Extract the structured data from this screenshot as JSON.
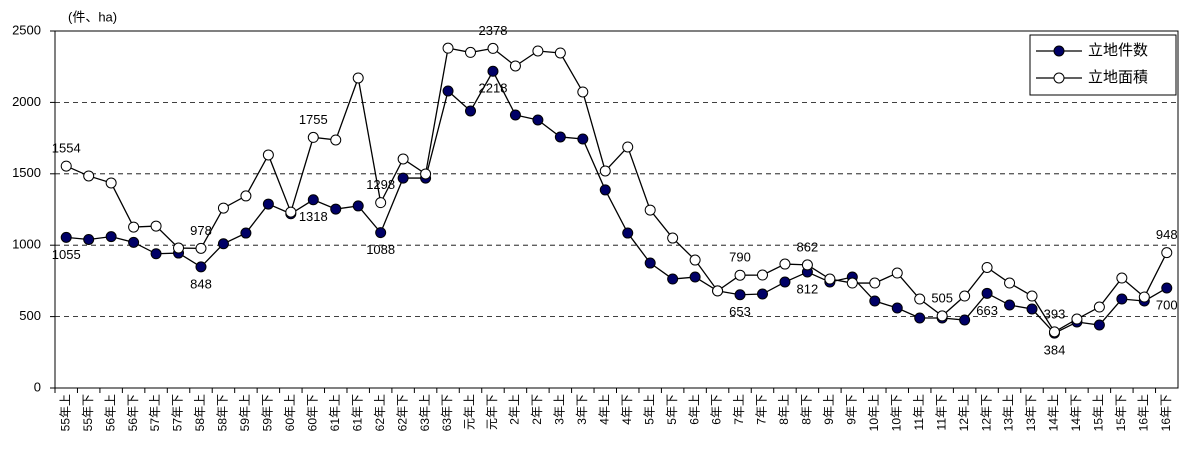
{
  "chart_data": {
    "type": "line",
    "y_label": "(件、ha)",
    "categories": [
      "55年上",
      "55年下",
      "56年上",
      "56年下",
      "57年上",
      "57年下",
      "58年上",
      "58年下",
      "59年上",
      "59年下",
      "60年上",
      "60年下",
      "61年上",
      "61年下",
      "62年上",
      "62年下",
      "63年上",
      "63年下",
      "元年上",
      "元年下",
      "2年上",
      "2年下",
      "3年上",
      "3年下",
      "4年上",
      "4年下",
      "5年上",
      "5年下",
      "6年上",
      "6年下",
      "7年上",
      "7年下",
      "8年上",
      "8年下",
      "9年上",
      "9年下",
      "10年上",
      "10年下",
      "11年上",
      "11年下",
      "12年上",
      "12年下",
      "13年上",
      "13年下",
      "14年上",
      "14年下",
      "15年上",
      "15年下",
      "16年上",
      "16年下"
    ],
    "series": [
      {
        "name": "立地件数",
        "color": "#000066",
        "marker": "filled",
        "values": [
          1055,
          1040,
          1060,
          1020,
          940,
          945,
          848,
          1010,
          1085,
          1288,
          1220,
          1318,
          1253,
          1275,
          1088,
          1470,
          1470,
          2080,
          1940,
          2218,
          1912,
          1877,
          1758,
          1744,
          1387,
          1085,
          875,
          763,
          777,
          680,
          653,
          658,
          742,
          812,
          742,
          777,
          609,
          560,
          490,
          490,
          476,
          663,
          581,
          553,
          384,
          462,
          441,
          623,
          609,
          700
        ],
        "value_labels": [
          "1055",
          null,
          null,
          null,
          null,
          null,
          "848",
          null,
          null,
          null,
          null,
          "1318",
          null,
          null,
          "1088",
          null,
          null,
          null,
          null,
          "2218",
          null,
          null,
          null,
          null,
          null,
          null,
          null,
          null,
          null,
          null,
          "653",
          null,
          null,
          "812",
          null,
          null,
          null,
          null,
          null,
          null,
          null,
          "663",
          null,
          null,
          "384",
          null,
          null,
          null,
          null,
          "700"
        ]
      },
      {
        "name": "立地面積",
        "color": "#000000",
        "marker": "open",
        "values": [
          1554,
          1485,
          1436,
          1127,
          1134,
          980,
          978,
          1260,
          1345,
          1632,
          1232,
          1755,
          1737,
          2171,
          1298,
          1604,
          1499,
          2380,
          2350,
          2378,
          2255,
          2360,
          2346,
          2073,
          1520,
          1688,
          1246,
          1050,
          896,
          680,
          790,
          791,
          868,
          862,
          763,
          735,
          735,
          805,
          623,
          505,
          644,
          844,
          735,
          644,
          393,
          483,
          567,
          770,
          637,
          948
        ],
        "value_labels": [
          "1554",
          null,
          null,
          null,
          null,
          null,
          "978",
          null,
          null,
          null,
          null,
          "1755",
          null,
          null,
          "1298",
          null,
          null,
          null,
          null,
          "2378",
          null,
          null,
          null,
          null,
          null,
          null,
          null,
          null,
          null,
          null,
          "790",
          null,
          null,
          "862",
          null,
          null,
          null,
          null,
          null,
          "505",
          null,
          null,
          null,
          null,
          "393",
          null,
          null,
          null,
          null,
          "948"
        ]
      }
    ],
    "ylim": [
      0,
      2500
    ],
    "yticks": [
      0,
      500,
      1000,
      1500,
      2000,
      2500
    ],
    "grid": true,
    "legend": "upper right"
  }
}
